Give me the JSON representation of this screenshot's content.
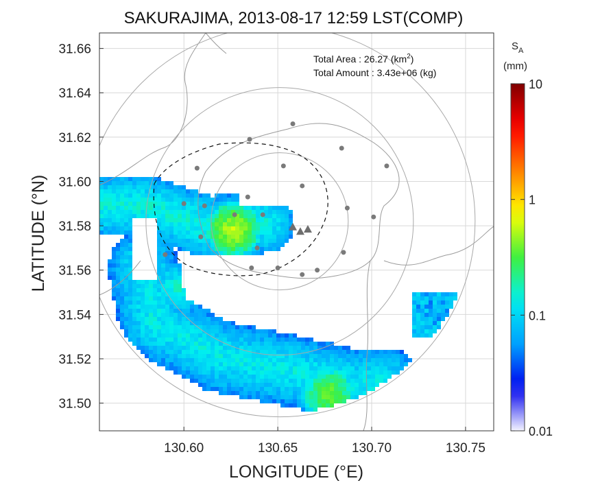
{
  "chart_data": {
    "type": "heatmap",
    "title": "SAKURAJIMA, 2013-08-17 12:59 LST(COMP)",
    "xlabel": "LONGITUDE (°E)",
    "ylabel": "LATITUDE (°N)",
    "xlim": [
      130.555,
      130.765
    ],
    "ylim": [
      31.4875,
      31.667
    ],
    "x_ticks": [
      "130.60",
      "130.65",
      "130.70",
      "130.75"
    ],
    "x_tick_values": [
      130.6,
      130.65,
      130.7,
      130.75
    ],
    "y_ticks": [
      "31.50",
      "31.52",
      "31.54",
      "31.56",
      "31.58",
      "31.60",
      "31.62",
      "31.64",
      "31.66"
    ],
    "y_tick_values": [
      31.5,
      31.52,
      31.54,
      31.56,
      31.58,
      31.6,
      31.62,
      31.64,
      31.66
    ],
    "grid": true,
    "info": {
      "area_label": "Total Area   : 26.27 (km",
      "area_sup": "2",
      "area_close": ")",
      "amount_label": "Total Amount : 3.43e+06 (kg)"
    },
    "colorbar": {
      "label_main": "S",
      "label_sub": "A",
      "unit": "(mm)",
      "scale": "log",
      "min": 0.01,
      "max": 10,
      "ticks": [
        "10",
        "1",
        "0.1",
        "0.01"
      ],
      "tick_values": [
        10,
        1,
        0.1,
        0.01
      ],
      "colors": [
        "#f4f4ff",
        "#0000ee",
        "#00a0ff",
        "#00f0f0",
        "#40f040",
        "#ffff00",
        "#ff8000",
        "#ff0000",
        "#800000"
      ]
    },
    "vents": [
      [
        130.658,
        31.5795
      ],
      [
        130.662,
        31.5775
      ],
      [
        130.666,
        31.5785
      ]
    ],
    "stations": [
      [
        130.607,
        31.606
      ],
      [
        130.635,
        31.619
      ],
      [
        130.658,
        31.626
      ],
      [
        130.684,
        31.615
      ],
      [
        130.708,
        31.607
      ],
      [
        130.653,
        31.607
      ],
      [
        130.663,
        31.598
      ],
      [
        130.634,
        31.593
      ],
      [
        130.6,
        31.59
      ],
      [
        130.611,
        31.589
      ],
      [
        130.627,
        31.585
      ],
      [
        130.642,
        31.585
      ],
      [
        130.687,
        31.588
      ],
      [
        130.701,
        31.584
      ],
      [
        130.609,
        31.575
      ],
      [
        130.639,
        31.57
      ],
      [
        130.59,
        31.567
      ],
      [
        130.685,
        31.568
      ],
      [
        130.636,
        31.561
      ],
      [
        130.65,
        31.561
      ],
      [
        130.671,
        31.56
      ],
      [
        130.663,
        31.558
      ]
    ],
    "range_rings_km": [
      5,
      10,
      15
    ]
  }
}
